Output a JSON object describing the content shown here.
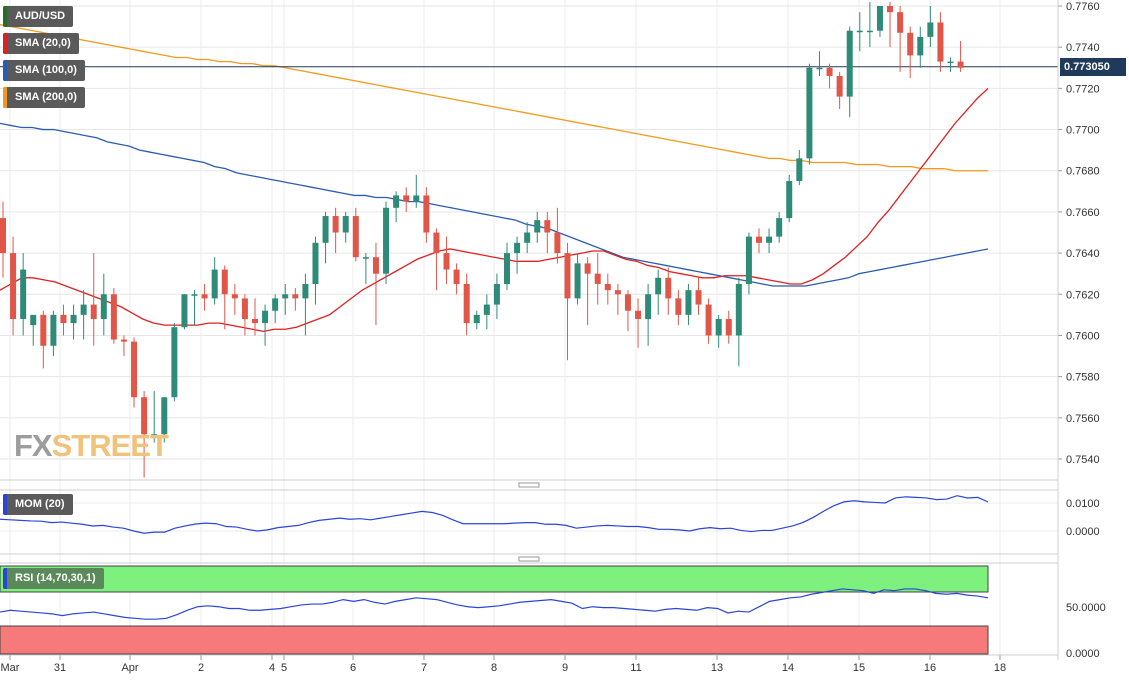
{
  "chart_data": {
    "type": "candlestick",
    "symbol": "AUD/USD",
    "current_price": "0.773050",
    "price_ylim": [
      0.753,
      0.7762
    ],
    "price_ticks": [
      "0.7760",
      "0.7740",
      "0.7720",
      "0.7700",
      "0.7680",
      "0.7660",
      "0.7640",
      "0.7620",
      "0.7600",
      "0.7580",
      "0.7560",
      "0.7540"
    ],
    "x_labels": [
      "Mar",
      "31",
      "Apr",
      "2",
      "4",
      "5",
      "6",
      "7",
      "8",
      "9",
      "11",
      "13",
      "14",
      "15",
      "16",
      "18"
    ],
    "indicators": {
      "sma20": {
        "label": "SMA (20,0)",
        "color": "#e02020"
      },
      "sma100": {
        "label": "SMA (100,0)",
        "color": "#2a5db0"
      },
      "sma200": {
        "label": "SMA (200,0)",
        "color": "#f39a1e"
      },
      "mom": {
        "label": "MOM (20)",
        "color": "#2a45d8",
        "ticks": [
          "0.0100",
          "0.0000"
        ]
      },
      "rsi": {
        "label": "RSI (14,70,30,1)",
        "color": "#2a45d8",
        "ticks": [
          "50.0000",
          "0.0000"
        ],
        "overbought": 70,
        "oversold": 30
      }
    },
    "candles": [
      [
        0.7657,
        0.764,
        0.7665,
        0.7628
      ],
      [
        0.764,
        0.7608,
        0.7648,
        0.76
      ],
      [
        0.7608,
        0.7632,
        0.764,
        0.76
      ],
      [
        0.7605,
        0.761,
        0.7608,
        0.7595
      ],
      [
        0.761,
        0.7595,
        0.7612,
        0.7584
      ],
      [
        0.7595,
        0.761,
        0.7612,
        0.759
      ],
      [
        0.761,
        0.7606,
        0.7615,
        0.76
      ],
      [
        0.7606,
        0.761,
        0.7615,
        0.7598
      ],
      [
        0.761,
        0.7615,
        0.7622,
        0.7598
      ],
      [
        0.7615,
        0.7608,
        0.764,
        0.7595
      ],
      [
        0.7608,
        0.762,
        0.763,
        0.76
      ],
      [
        0.762,
        0.7598,
        0.7623,
        0.7596
      ],
      [
        0.7598,
        0.7597,
        0.76,
        0.759
      ],
      [
        0.7597,
        0.757,
        0.7599,
        0.7565
      ],
      [
        0.757,
        0.7552,
        0.7573,
        0.7531
      ],
      [
        0.7552,
        0.7552,
        0.7573,
        0.7548
      ],
      [
        0.7552,
        0.757,
        0.757,
        0.7548
      ],
      [
        0.757,
        0.7604,
        0.7606,
        0.7568
      ],
      [
        0.7604,
        0.762,
        0.762,
        0.7603
      ],
      [
        0.762,
        0.762,
        0.7622,
        0.7605
      ],
      [
        0.762,
        0.7618,
        0.7625,
        0.7612
      ],
      [
        0.7618,
        0.7632,
        0.7638,
        0.7615
      ],
      [
        0.7632,
        0.762,
        0.7634,
        0.7603
      ],
      [
        0.762,
        0.7618,
        0.7625,
        0.761
      ],
      [
        0.7618,
        0.7608,
        0.762,
        0.76
      ],
      [
        0.7608,
        0.7606,
        0.7618,
        0.76
      ],
      [
        0.7606,
        0.7612,
        0.7615,
        0.7595
      ],
      [
        0.7612,
        0.7618,
        0.762,
        0.7606
      ],
      [
        0.7618,
        0.762,
        0.7625,
        0.761
      ],
      [
        0.762,
        0.7618,
        0.7623,
        0.7612
      ],
      [
        0.7618,
        0.7625,
        0.763,
        0.76
      ],
      [
        0.7625,
        0.7645,
        0.7648,
        0.7615
      ],
      [
        0.7645,
        0.7658,
        0.766,
        0.7635
      ],
      [
        0.7658,
        0.765,
        0.7662,
        0.764
      ],
      [
        0.765,
        0.7658,
        0.766,
        0.7645
      ],
      [
        0.7658,
        0.7638,
        0.7662,
        0.7636
      ],
      [
        0.7638,
        0.7638,
        0.764,
        0.7625
      ],
      [
        0.7638,
        0.763,
        0.7645,
        0.7605
      ],
      [
        0.763,
        0.7662,
        0.7665,
        0.7625
      ],
      [
        0.7662,
        0.7668,
        0.767,
        0.7655
      ],
      [
        0.7668,
        0.7665,
        0.7672,
        0.766
      ],
      [
        0.7665,
        0.7668,
        0.7678,
        0.7662
      ],
      [
        0.7668,
        0.765,
        0.7672,
        0.7645
      ],
      [
        0.765,
        0.764,
        0.7652,
        0.7622
      ],
      [
        0.764,
        0.7632,
        0.7648,
        0.7625
      ],
      [
        0.7632,
        0.7625,
        0.7635,
        0.762
      ],
      [
        0.7625,
        0.7606,
        0.763,
        0.76
      ],
      [
        0.7606,
        0.761,
        0.7612,
        0.7603
      ],
      [
        0.761,
        0.7615,
        0.762,
        0.7603
      ],
      [
        0.7615,
        0.7625,
        0.763,
        0.7608
      ],
      [
        0.7625,
        0.764,
        0.7645,
        0.7622
      ],
      [
        0.764,
        0.7645,
        0.7648,
        0.763
      ],
      [
        0.7645,
        0.765,
        0.7655,
        0.764
      ],
      [
        0.765,
        0.7656,
        0.766,
        0.7645
      ],
      [
        0.7656,
        0.765,
        0.766,
        0.764
      ],
      [
        0.765,
        0.764,
        0.7662,
        0.7635
      ],
      [
        0.764,
        0.7618,
        0.7645,
        0.7588
      ],
      [
        0.7618,
        0.7635,
        0.764,
        0.7615
      ],
      [
        0.7635,
        0.763,
        0.7638,
        0.7605
      ],
      [
        0.763,
        0.7625,
        0.764,
        0.7615
      ],
      [
        0.7625,
        0.7622,
        0.763,
        0.7615
      ],
      [
        0.7622,
        0.762,
        0.7625,
        0.761
      ],
      [
        0.762,
        0.7612,
        0.7622,
        0.7602
      ],
      [
        0.7612,
        0.7608,
        0.7618,
        0.7594
      ],
      [
        0.7608,
        0.762,
        0.7625,
        0.7595
      ],
      [
        0.762,
        0.7628,
        0.7632,
        0.761
      ],
      [
        0.7628,
        0.7618,
        0.7633,
        0.761
      ],
      [
        0.7618,
        0.761,
        0.7622,
        0.7605
      ],
      [
        0.761,
        0.7622,
        0.7625,
        0.7605
      ],
      [
        0.7622,
        0.7615,
        0.7628,
        0.761
      ],
      [
        0.7615,
        0.76,
        0.7618,
        0.7596
      ],
      [
        0.76,
        0.7608,
        0.761,
        0.7594
      ],
      [
        0.7608,
        0.76,
        0.7612,
        0.7596
      ],
      [
        0.76,
        0.7625,
        0.7628,
        0.7585
      ],
      [
        0.7625,
        0.7648,
        0.765,
        0.762
      ],
      [
        0.7648,
        0.7645,
        0.7652,
        0.764
      ],
      [
        0.7645,
        0.7648,
        0.7652,
        0.764
      ],
      [
        0.7648,
        0.7657,
        0.766,
        0.7645
      ],
      [
        0.7657,
        0.7675,
        0.7678,
        0.7655
      ],
      [
        0.7675,
        0.7686,
        0.769,
        0.7673
      ],
      [
        0.7686,
        0.773,
        0.7732,
        0.7683
      ],
      [
        0.773,
        0.773,
        0.7738,
        0.7726
      ],
      [
        0.773,
        0.7726,
        0.7732,
        0.772
      ],
      [
        0.7726,
        0.7716,
        0.7728,
        0.771
      ],
      [
        0.7716,
        0.7748,
        0.775,
        0.7706
      ],
      [
        0.7748,
        0.7748,
        0.7757,
        0.7738
      ],
      [
        0.7748,
        0.7748,
        0.7762,
        0.774
      ],
      [
        0.7748,
        0.776,
        0.776,
        0.7745
      ],
      [
        0.776,
        0.7757,
        0.7762,
        0.774
      ],
      [
        0.7757,
        0.7747,
        0.776,
        0.7728
      ],
      [
        0.7747,
        0.7736,
        0.775,
        0.7725
      ],
      [
        0.7736,
        0.7745,
        0.775,
        0.773
      ],
      [
        0.7745,
        0.7752,
        0.776,
        0.774
      ],
      [
        0.7752,
        0.7733,
        0.7757,
        0.7728
      ],
      [
        0.7733,
        0.7733,
        0.7735,
        0.7728
      ],
      [
        0.7733,
        0.773,
        0.7743,
        0.7728
      ]
    ],
    "sma20_values": [
      0.7622,
      0.7625,
      0.7628,
      0.7628,
      0.7627,
      0.7626,
      0.7624,
      0.7622,
      0.762,
      0.7618,
      0.7616,
      0.7614,
      0.7611,
      0.7608,
      0.7606,
      0.7605,
      0.7605,
      0.7605,
      0.7605,
      0.7606,
      0.7606,
      0.7605,
      0.7604,
      0.7603,
      0.7602,
      0.7603,
      0.7603,
      0.7604,
      0.7606,
      0.7608,
      0.761,
      0.7614,
      0.7618,
      0.7622,
      0.7625,
      0.7628,
      0.7631,
      0.7634,
      0.7637,
      0.7639,
      0.7641,
      0.7642,
      0.7641,
      0.764,
      0.7639,
      0.7638,
      0.7637,
      0.7636,
      0.7636,
      0.7636,
      0.7637,
      0.7638,
      0.7639,
      0.764,
      0.7641,
      0.7641,
      0.7639,
      0.7637,
      0.7636,
      0.7634,
      0.7633,
      0.7631,
      0.763,
      0.7629,
      0.7628,
      0.7628,
      0.7629,
      0.7629,
      0.7629,
      0.7628,
      0.7627,
      0.7626,
      0.7625,
      0.7625,
      0.7627,
      0.763,
      0.7634,
      0.7638,
      0.7643,
      0.7648,
      0.7655,
      0.7661,
      0.7668,
      0.7675,
      0.7682,
      0.7689,
      0.7696,
      0.7703,
      0.7709,
      0.7715,
      0.772
    ],
    "sma100_values": [
      0.7703,
      0.7702,
      0.7701,
      0.7701,
      0.77,
      0.77,
      0.7699,
      0.7698,
      0.7697,
      0.7696,
      0.7694,
      0.7693,
      0.7692,
      0.769,
      0.7689,
      0.7688,
      0.7687,
      0.7686,
      0.7685,
      0.7684,
      0.7682,
      0.7681,
      0.7679,
      0.7678,
      0.7677,
      0.7676,
      0.7675,
      0.7674,
      0.7673,
      0.7672,
      0.7671,
      0.767,
      0.7669,
      0.7668,
      0.7668,
      0.7667,
      0.7667,
      0.7666,
      0.7665,
      0.7665,
      0.7664,
      0.7663,
      0.7662,
      0.7661,
      0.766,
      0.7659,
      0.7658,
      0.7657,
      0.7656,
      0.7654,
      0.7653,
      0.7652,
      0.765,
      0.7648,
      0.7646,
      0.7644,
      0.7642,
      0.764,
      0.7638,
      0.7637,
      0.7636,
      0.7635,
      0.7634,
      0.7633,
      0.7632,
      0.7631,
      0.763,
      0.7629,
      0.7628,
      0.7627,
      0.7626,
      0.7625,
      0.7624,
      0.7624,
      0.7624,
      0.7624,
      0.7625,
      0.7626,
      0.7627,
      0.7628,
      0.763,
      0.7631,
      0.7632,
      0.7633,
      0.7634,
      0.7635,
      0.7636,
      0.7637,
      0.7638,
      0.7639,
      0.764,
      0.7641,
      0.7642
    ],
    "sma200_values": [
      0.7751,
      0.775,
      0.7749,
      0.7748,
      0.7747,
      0.7746,
      0.7745,
      0.7744,
      0.7743,
      0.7742,
      0.7741,
      0.774,
      0.7739,
      0.7738,
      0.7737,
      0.7736,
      0.7735,
      0.7735,
      0.7734,
      0.7734,
      0.7733,
      0.7733,
      0.7732,
      0.7732,
      0.7731,
      0.7731,
      0.773,
      0.7729,
      0.7728,
      0.7727,
      0.7726,
      0.7725,
      0.7724,
      0.7723,
      0.7722,
      0.7721,
      0.772,
      0.7719,
      0.7718,
      0.7717,
      0.7716,
      0.7715,
      0.7714,
      0.7713,
      0.7712,
      0.7711,
      0.771,
      0.7709,
      0.7708,
      0.7707,
      0.7706,
      0.7705,
      0.7704,
      0.7703,
      0.7702,
      0.7701,
      0.77,
      0.7699,
      0.7698,
      0.7697,
      0.7696,
      0.7695,
      0.7694,
      0.7693,
      0.7692,
      0.7691,
      0.769,
      0.7689,
      0.7688,
      0.7687,
      0.7686,
      0.7686,
      0.7685,
      0.7685,
      0.7684,
      0.7684,
      0.7684,
      0.7684,
      0.7683,
      0.7683,
      0.7683,
      0.7682,
      0.7682,
      0.7682,
      0.7681,
      0.7681,
      0.7681,
      0.768,
      0.768,
      0.768,
      0.768
    ],
    "mom_values": [
      0.0042,
      0.004,
      0.0038,
      0.0036,
      0.0035,
      0.003,
      0.0032,
      0.0028,
      0.0024,
      0.0018,
      0.002,
      0.0014,
      0.001,
      0.0,
      -0.0008,
      -0.0004,
      -0.0004,
      0.001,
      0.0018,
      0.0025,
      0.0028,
      0.0026,
      0.0016,
      0.0014,
      0.0006,
      0.0,
      0.0004,
      0.0012,
      0.0016,
      0.002,
      0.003,
      0.0038,
      0.0042,
      0.0046,
      0.0042,
      0.0044,
      0.004,
      0.0046,
      0.0052,
      0.0058,
      0.0064,
      0.007,
      0.0066,
      0.0056,
      0.004,
      0.0026,
      0.0026,
      0.0026,
      0.0026,
      0.0026,
      0.0028,
      0.003,
      0.003,
      0.0024,
      0.0024,
      0.002,
      0.001,
      0.0014,
      0.0018,
      0.002,
      0.0018,
      0.0016,
      0.0016,
      0.0012,
      0.0006,
      0.0006,
      0.0004,
      0.0,
      0.0008,
      0.0012,
      0.0008,
      0.001,
      0.0002,
      -0.0002,
      0.0002,
      0.0002,
      0.001,
      0.0018,
      0.003,
      0.0048,
      0.007,
      0.009,
      0.0104,
      0.0108,
      0.0104,
      0.0102,
      0.01,
      0.0118,
      0.0122,
      0.012,
      0.0118,
      0.0112,
      0.0114,
      0.0126,
      0.0118,
      0.012,
      0.0104
    ],
    "rsi_values": [
      46,
      48,
      47,
      46,
      45,
      44,
      42,
      44,
      45,
      46,
      44,
      42,
      40,
      39,
      38,
      38,
      39,
      43,
      48,
      52,
      53,
      52,
      50,
      50,
      48,
      48,
      49,
      50,
      52,
      54,
      55,
      55,
      57,
      60,
      58,
      60,
      57,
      55,
      58,
      60,
      62,
      61,
      60,
      57,
      54,
      52,
      51,
      52,
      53,
      55,
      57,
      58,
      59,
      60,
      58,
      56,
      50,
      52,
      51,
      51,
      50,
      49,
      48,
      47,
      49,
      50,
      49,
      48,
      51,
      50,
      45,
      47,
      46,
      52,
      58,
      60,
      62,
      63,
      66,
      68,
      70,
      72,
      71,
      70,
      67,
      71,
      70,
      72,
      72,
      70,
      67,
      66,
      67,
      65,
      64,
      62
    ]
  }
}
